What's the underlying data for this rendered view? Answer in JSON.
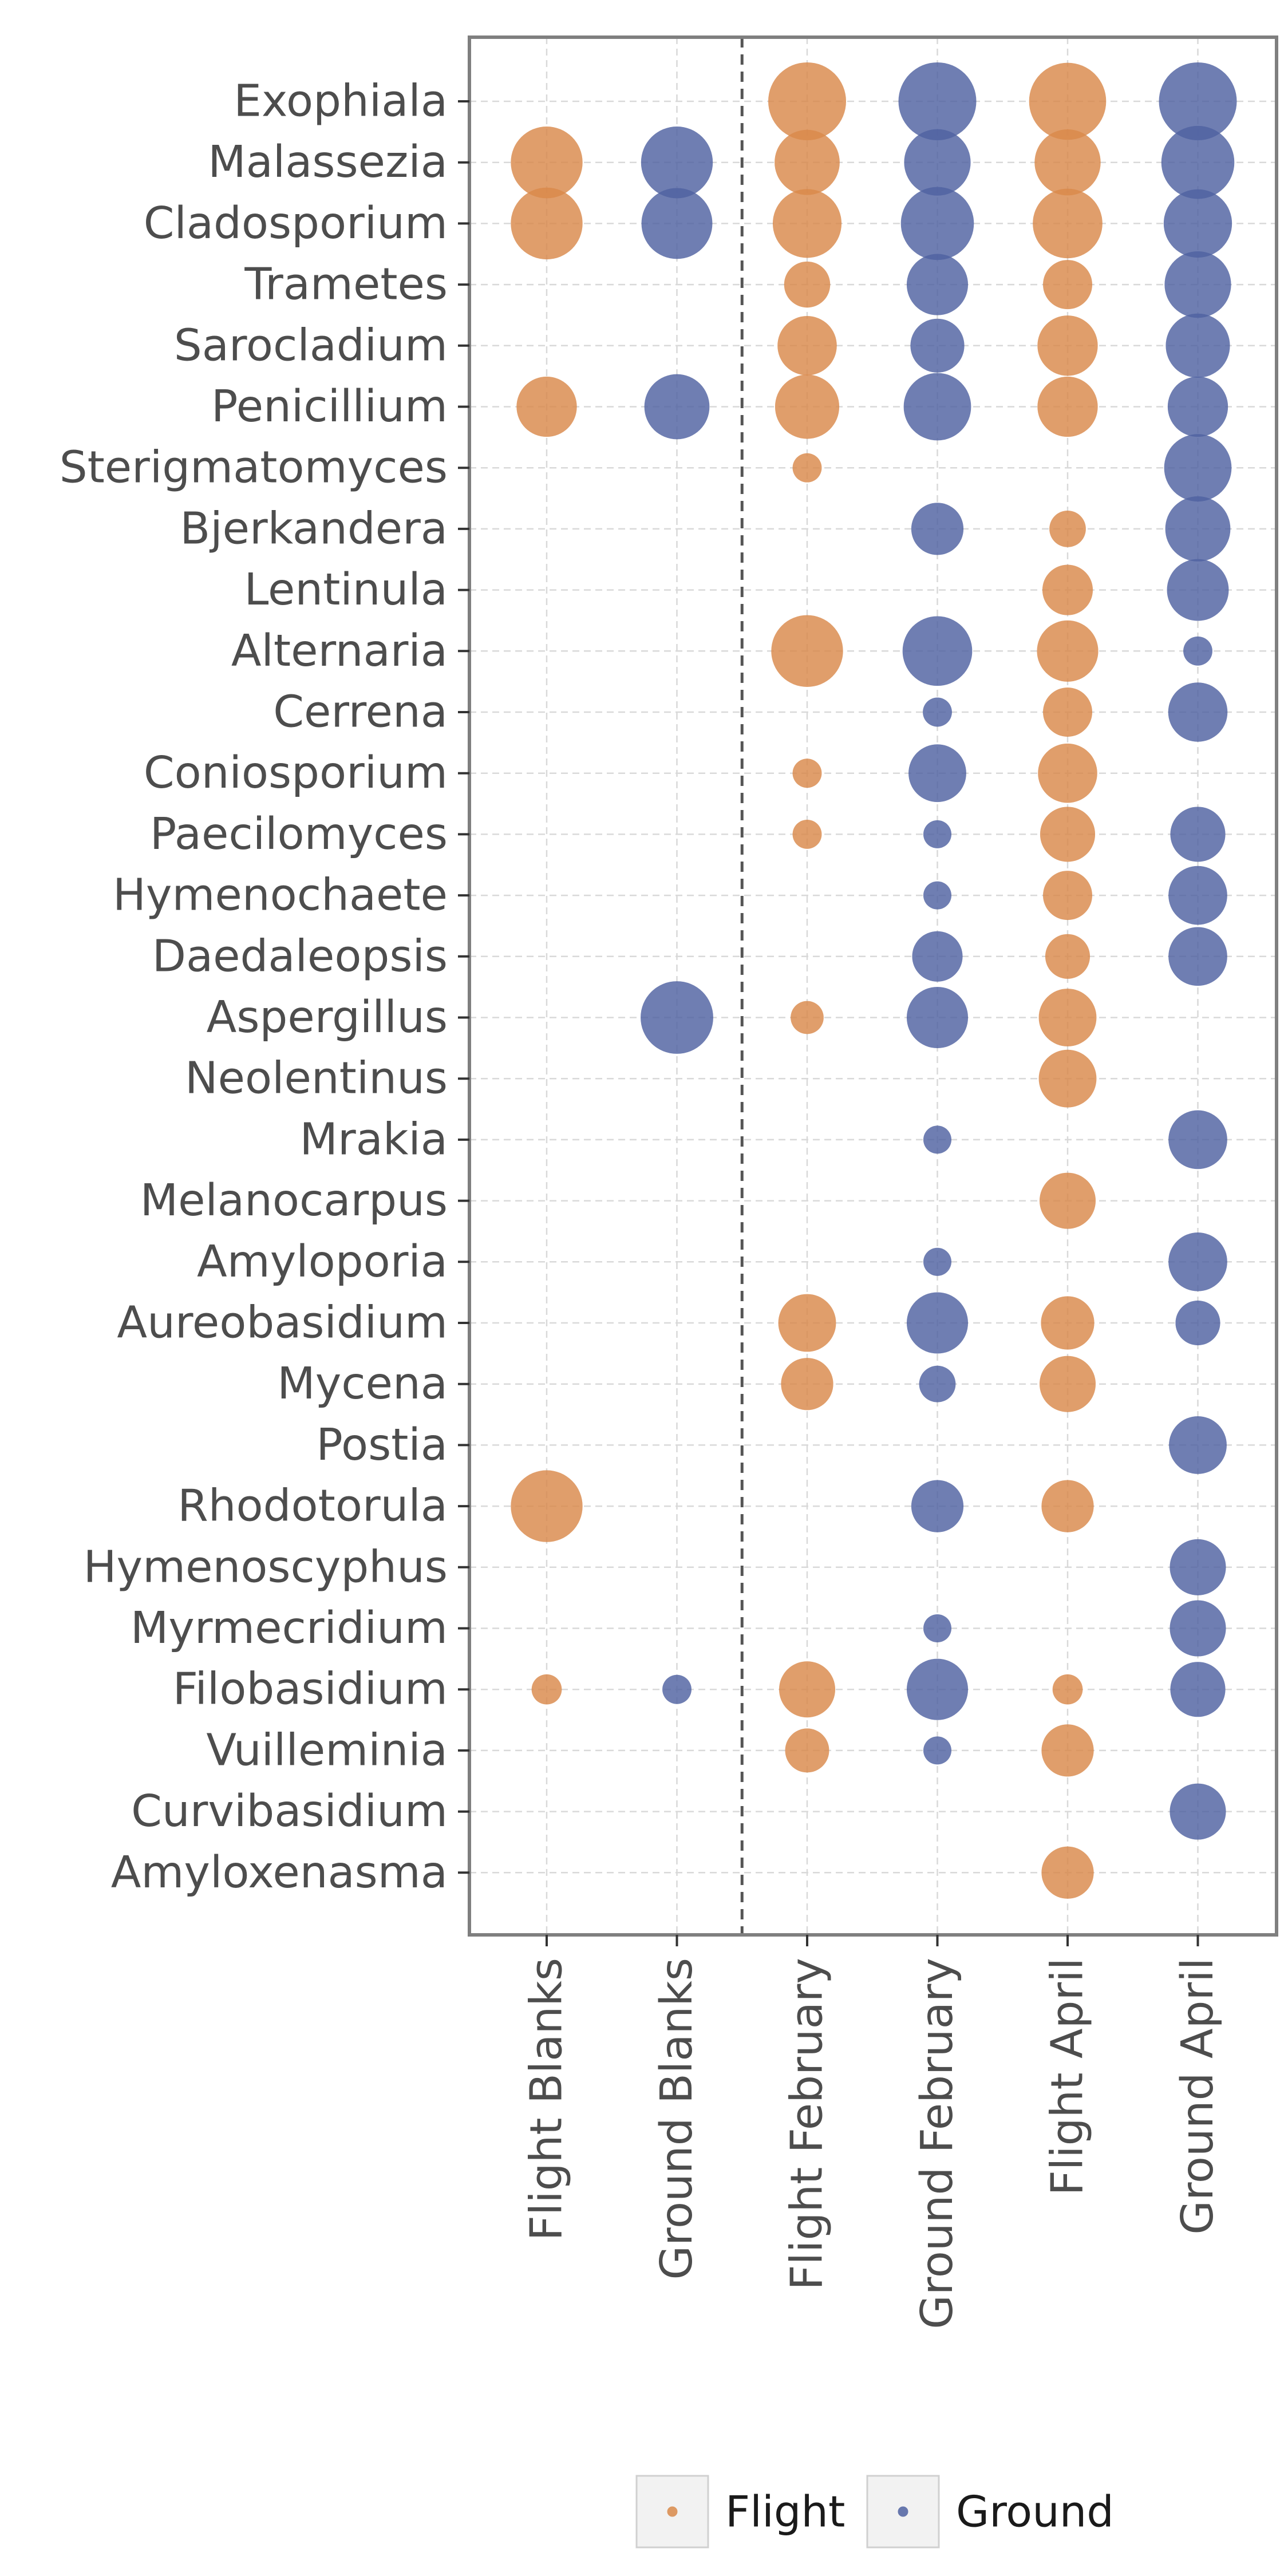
{
  "chart_data": {
    "type": "scatter",
    "title": "",
    "xlabel": "",
    "ylabel": "",
    "grid": true,
    "legend_position": "bottom",
    "x_categories": [
      "Flight Blanks",
      "Ground Blanks",
      "Flight February",
      "Ground February",
      "Flight April",
      "Ground April"
    ],
    "y_categories": [
      "Exophiala",
      "Malassezia",
      "Cladosporium",
      "Trametes",
      "Sarocladium",
      "Penicillium",
      "Sterigmatomyces",
      "Bjerkandera",
      "Lentinula",
      "Alternaria",
      "Cerrena",
      "Coniosporium",
      "Paecilomyces",
      "Hymenochaete",
      "Daedaleopsis",
      "Aspergillus",
      "Neolentinus",
      "Mrakia",
      "Melanocarpus",
      "Amyloporia",
      "Aureobasidium",
      "Mycena",
      "Postia",
      "Rhodotorula",
      "Hymenoscyphus",
      "Myrmecridium",
      "Filobasidium",
      "Vuilleminia",
      "Curvibasidium",
      "Amyloxenasma"
    ],
    "size_scale_max": 1.0,
    "series": [
      {
        "name": "Flight",
        "color": "#d9894a",
        "points": [
          {
            "x": "Flight Blanks",
            "y": "Malassezia",
            "size": 0.85
          },
          {
            "x": "Flight Blanks",
            "y": "Cladosporium",
            "size": 0.85
          },
          {
            "x": "Flight Blanks",
            "y": "Penicillium",
            "size": 0.6
          },
          {
            "x": "Flight Blanks",
            "y": "Rhodotorula",
            "size": 0.85
          },
          {
            "x": "Flight Blanks",
            "y": "Filobasidium",
            "size": 0.15
          },
          {
            "x": "Flight February",
            "y": "Exophiala",
            "size": 1.0
          },
          {
            "x": "Flight February",
            "y": "Malassezia",
            "size": 0.7
          },
          {
            "x": "Flight February",
            "y": "Cladosporium",
            "size": 0.78
          },
          {
            "x": "Flight February",
            "y": "Trametes",
            "size": 0.35
          },
          {
            "x": "Flight February",
            "y": "Sarocladium",
            "size": 0.58
          },
          {
            "x": "Flight February",
            "y": "Penicillium",
            "size": 0.68
          },
          {
            "x": "Flight February",
            "y": "Sterigmatomyces",
            "size": 0.14
          },
          {
            "x": "Flight February",
            "y": "Alternaria",
            "size": 0.85
          },
          {
            "x": "Flight February",
            "y": "Coniosporium",
            "size": 0.14
          },
          {
            "x": "Flight February",
            "y": "Paecilomyces",
            "size": 0.14
          },
          {
            "x": "Flight February",
            "y": "Aspergillus",
            "size": 0.18
          },
          {
            "x": "Flight February",
            "y": "Aureobasidium",
            "size": 0.55
          },
          {
            "x": "Flight February",
            "y": "Mycena",
            "size": 0.45
          },
          {
            "x": "Flight February",
            "y": "Filobasidium",
            "size": 0.52
          },
          {
            "x": "Flight February",
            "y": "Vuilleminia",
            "size": 0.32
          },
          {
            "x": "Flight April",
            "y": "Exophiala",
            "size": 0.98
          },
          {
            "x": "Flight April",
            "y": "Malassezia",
            "size": 0.72
          },
          {
            "x": "Flight April",
            "y": "Cladosporium",
            "size": 0.8
          },
          {
            "x": "Flight April",
            "y": "Trametes",
            "size": 0.4
          },
          {
            "x": "Flight April",
            "y": "Sarocladium",
            "size": 0.6
          },
          {
            "x": "Flight April",
            "y": "Penicillium",
            "size": 0.6
          },
          {
            "x": "Flight April",
            "y": "Bjerkandera",
            "size": 0.22
          },
          {
            "x": "Flight April",
            "y": "Lentinula",
            "size": 0.42
          },
          {
            "x": "Flight April",
            "y": "Alternaria",
            "size": 0.62
          },
          {
            "x": "Flight April",
            "y": "Cerrena",
            "size": 0.4
          },
          {
            "x": "Flight April",
            "y": "Coniosporium",
            "size": 0.58
          },
          {
            "x": "Flight April",
            "y": "Paecilomyces",
            "size": 0.5
          },
          {
            "x": "Flight April",
            "y": "Hymenochaete",
            "size": 0.4
          },
          {
            "x": "Flight April",
            "y": "Daedaleopsis",
            "size": 0.33
          },
          {
            "x": "Flight April",
            "y": "Aspergillus",
            "size": 0.55
          },
          {
            "x": "Flight April",
            "y": "Neolentinus",
            "size": 0.55
          },
          {
            "x": "Flight April",
            "y": "Melanocarpus",
            "size": 0.52
          },
          {
            "x": "Flight April",
            "y": "Aureobasidium",
            "size": 0.47
          },
          {
            "x": "Flight April",
            "y": "Mycena",
            "size": 0.52
          },
          {
            "x": "Flight April",
            "y": "Rhodotorula",
            "size": 0.45
          },
          {
            "x": "Flight April",
            "y": "Filobasidium",
            "size": 0.15
          },
          {
            "x": "Flight April",
            "y": "Vuilleminia",
            "size": 0.45
          },
          {
            "x": "Flight April",
            "y": "Amyloxenasma",
            "size": 0.45
          }
        ]
      },
      {
        "name": "Ground",
        "color": "#4f61a1",
        "points": [
          {
            "x": "Ground Blanks",
            "y": "Malassezia",
            "size": 0.85
          },
          {
            "x": "Ground Blanks",
            "y": "Cladosporium",
            "size": 0.83
          },
          {
            "x": "Ground Blanks",
            "y": "Penicillium",
            "size": 0.7
          },
          {
            "x": "Ground Blanks",
            "y": "Aspergillus",
            "size": 0.87
          },
          {
            "x": "Ground Blanks",
            "y": "Filobasidium",
            "size": 0.14
          },
          {
            "x": "Ground February",
            "y": "Exophiala",
            "size": 1.0
          },
          {
            "x": "Ground February",
            "y": "Malassezia",
            "size": 0.73
          },
          {
            "x": "Ground February",
            "y": "Cladosporium",
            "size": 0.88
          },
          {
            "x": "Ground February",
            "y": "Trametes",
            "size": 0.62
          },
          {
            "x": "Ground February",
            "y": "Sarocladium",
            "size": 0.48
          },
          {
            "x": "Ground February",
            "y": "Penicillium",
            "size": 0.75
          },
          {
            "x": "Ground February",
            "y": "Bjerkandera",
            "size": 0.45
          },
          {
            "x": "Ground February",
            "y": "Alternaria",
            "size": 0.8
          },
          {
            "x": "Ground February",
            "y": "Cerrena",
            "size": 0.14
          },
          {
            "x": "Ground February",
            "y": "Coniosporium",
            "size": 0.55
          },
          {
            "x": "Ground February",
            "y": "Paecilomyces",
            "size": 0.13
          },
          {
            "x": "Ground February",
            "y": "Hymenochaete",
            "size": 0.13
          },
          {
            "x": "Ground February",
            "y": "Daedaleopsis",
            "size": 0.42
          },
          {
            "x": "Ground February",
            "y": "Aspergillus",
            "size": 0.62
          },
          {
            "x": "Ground February",
            "y": "Mrakia",
            "size": 0.13
          },
          {
            "x": "Ground February",
            "y": "Amyloporia",
            "size": 0.13
          },
          {
            "x": "Ground February",
            "y": "Aureobasidium",
            "size": 0.62
          },
          {
            "x": "Ground February",
            "y": "Mycena",
            "size": 0.22
          },
          {
            "x": "Ground February",
            "y": "Rhodotorula",
            "size": 0.45
          },
          {
            "x": "Ground February",
            "y": "Myrmecridium",
            "size": 0.13
          },
          {
            "x": "Ground February",
            "y": "Filobasidium",
            "size": 0.62
          },
          {
            "x": "Ground February",
            "y": "Vuilleminia",
            "size": 0.13
          },
          {
            "x": "Ground April",
            "y": "Exophiala",
            "size": 1.0
          },
          {
            "x": "Ground April",
            "y": "Malassezia",
            "size": 0.88
          },
          {
            "x": "Ground April",
            "y": "Cladosporium",
            "size": 0.77
          },
          {
            "x": "Ground April",
            "y": "Trametes",
            "size": 0.73
          },
          {
            "x": "Ground April",
            "y": "Sarocladium",
            "size": 0.68
          },
          {
            "x": "Ground April",
            "y": "Penicillium",
            "size": 0.6
          },
          {
            "x": "Ground April",
            "y": "Sterigmatomyces",
            "size": 0.75
          },
          {
            "x": "Ground April",
            "y": "Bjerkandera",
            "size": 0.7
          },
          {
            "x": "Ground April",
            "y": "Lentinula",
            "size": 0.63
          },
          {
            "x": "Ground April",
            "y": "Alternaria",
            "size": 0.14
          },
          {
            "x": "Ground April",
            "y": "Cerrena",
            "size": 0.58
          },
          {
            "x": "Ground April",
            "y": "Paecilomyces",
            "size": 0.5
          },
          {
            "x": "Ground April",
            "y": "Hymenochaete",
            "size": 0.57
          },
          {
            "x": "Ground April",
            "y": "Daedaleopsis",
            "size": 0.57
          },
          {
            "x": "Ground April",
            "y": "Mrakia",
            "size": 0.57
          },
          {
            "x": "Ground April",
            "y": "Amyloporia",
            "size": 0.57
          },
          {
            "x": "Ground April",
            "y": "Aureobasidium",
            "size": 0.33
          },
          {
            "x": "Ground April",
            "y": "Postia",
            "size": 0.55
          },
          {
            "x": "Ground April",
            "y": "Hymenoscyphus",
            "size": 0.52
          },
          {
            "x": "Ground April",
            "y": "Myrmecridium",
            "size": 0.52
          },
          {
            "x": "Ground April",
            "y": "Filobasidium",
            "size": 0.5
          },
          {
            "x": "Ground April",
            "y": "Curvibasidium",
            "size": 0.52
          }
        ]
      }
    ],
    "separator_after_x": "Ground Blanks"
  }
}
